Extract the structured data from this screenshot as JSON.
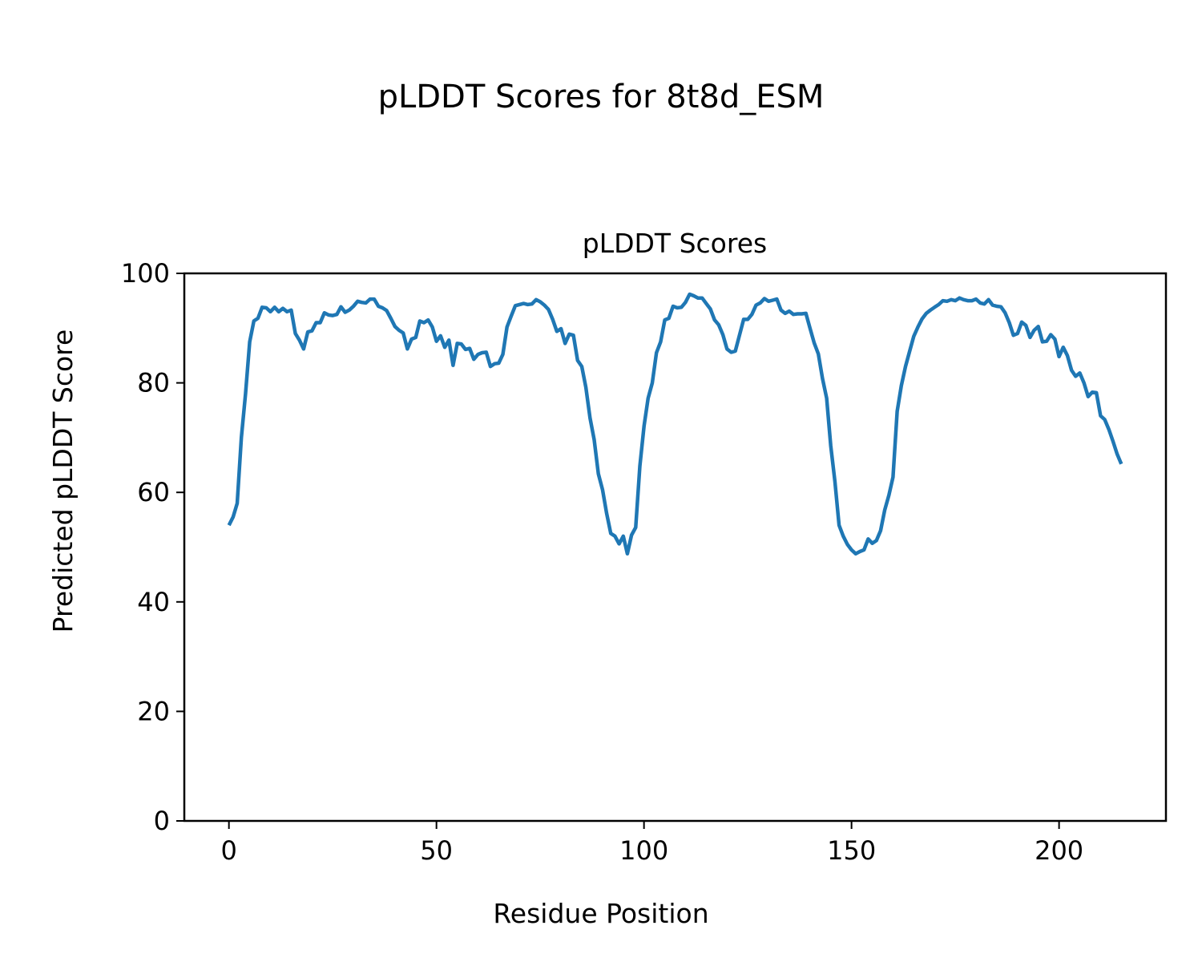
{
  "chart_data": {
    "type": "line",
    "suptitle": "pLDDT Scores for 8t8d_ESM",
    "title": "pLDDT Scores",
    "xlabel": "Residue Position",
    "ylabel": "Predicted pLDDT Score",
    "xlim": [
      -10.75,
      225.75
    ],
    "ylim": [
      0,
      100
    ],
    "xticks": [
      0,
      50,
      100,
      150,
      200
    ],
    "yticks": [
      0,
      20,
      40,
      60,
      80,
      100
    ],
    "grid": false,
    "color": "#1f77b4",
    "series": [
      {
        "name": "pLDDT",
        "values": [
          54,
          55.5,
          58,
          70,
          78,
          87.5,
          91.3,
          91.8,
          93.8,
          93.7,
          93.0,
          93.8,
          93.0,
          93.6,
          93.0,
          93.3,
          89,
          87.8,
          86.2,
          89.3,
          89.5,
          91,
          91,
          92.8,
          92.4,
          92.3,
          92.5,
          93.9,
          92.9,
          93.3,
          94,
          94.9,
          94.7,
          94.6,
          95.3,
          95.3,
          94,
          93.7,
          93.2,
          91.8,
          90.3,
          89.6,
          89.1,
          86.2,
          88,
          88.3,
          91.3,
          91,
          91.5,
          90.2,
          87.6,
          88.6,
          86.5,
          87.8,
          83.2,
          87.2,
          87.1,
          86.1,
          86.3,
          84.3,
          85.2,
          85.5,
          85.6,
          83,
          83.5,
          83.6,
          85.2,
          90.2,
          92.2,
          94.1,
          94.3,
          94.5,
          94.3,
          94.4,
          95.2,
          94.8,
          94.2,
          93.4,
          91.6,
          89.4,
          89.9,
          87.2,
          88.9,
          88.7,
          84.1,
          83,
          79.2,
          73.6,
          69.6,
          63.4,
          60.5,
          56.2,
          52.5,
          52,
          50.6,
          52,
          48.8,
          52.2,
          53.6,
          64.8,
          72.1,
          77.2,
          80,
          85.5,
          87.5,
          91.5,
          91.8,
          94,
          93.7,
          93.8,
          94.7,
          96.2,
          95.9,
          95.5,
          95.5,
          94.5,
          93.5,
          91.5,
          90.6,
          88.8,
          86.2,
          85.6,
          85.8,
          88.7,
          91.6,
          91.6,
          92.5,
          94.2,
          94.6,
          95.4,
          94.9,
          95.1,
          95.3,
          93.3,
          92.7,
          93.1,
          92.5,
          92.6,
          92.6,
          92.7,
          90,
          87.3,
          85.3,
          80.8,
          77.2,
          68.5,
          62,
          54,
          52,
          50.5,
          49.5,
          48.8,
          49.2,
          49.5,
          51.5,
          50.7,
          51.2,
          53,
          56.8,
          59.5,
          62.8,
          74.8,
          79.5,
          83,
          85.8,
          88.5,
          90.2,
          91.7,
          92.7,
          93.3,
          93.8,
          94.3,
          95,
          94.9,
          95.2,
          95,
          95.5,
          95.2,
          95,
          95,
          95.3,
          94.6,
          94.4,
          95.2,
          94.2,
          94,
          93.9,
          92.8,
          91,
          88.7,
          89,
          91.1,
          90.5,
          88.3,
          89.6,
          90.3,
          87.5,
          87.6,
          88.8,
          88,
          84.8,
          86.5,
          85,
          82.3,
          81.2,
          81.8,
          80,
          77.5,
          78.3,
          78.2,
          74,
          73.3,
          71.5,
          69.3,
          67,
          65.2
        ]
      }
    ]
  }
}
